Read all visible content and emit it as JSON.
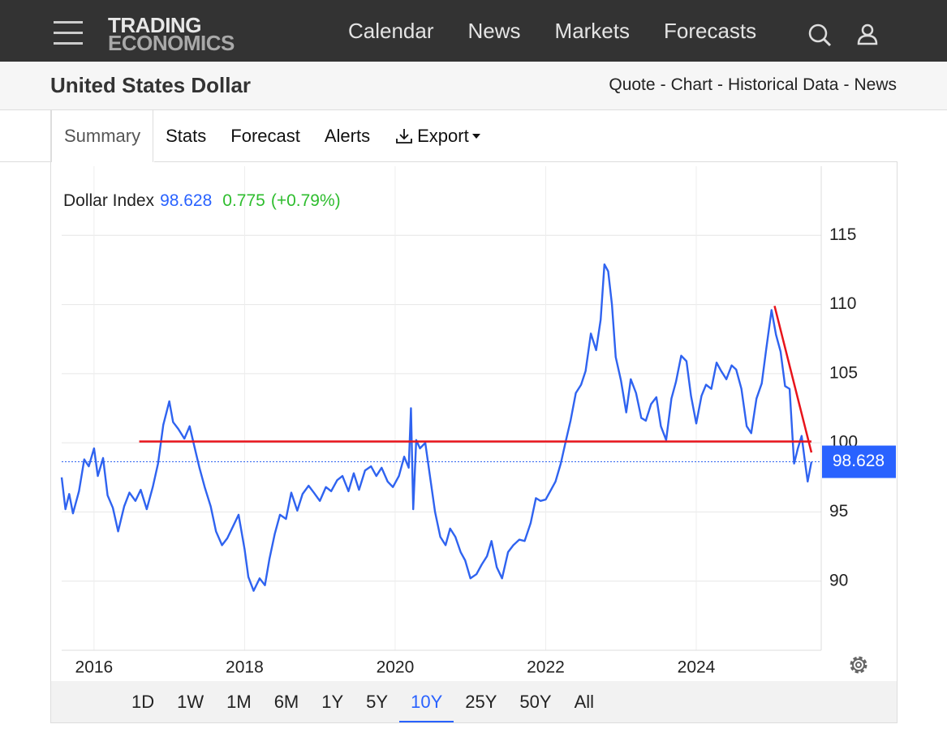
{
  "nav": {
    "logo_top": "TRADING",
    "logo_bottom": "ECONOMICS",
    "links": [
      "Calendar",
      "News",
      "Markets",
      "Forecasts"
    ]
  },
  "header": {
    "title": "United States Dollar",
    "links": [
      "Quote",
      "Chart",
      "Historical Data",
      "News"
    ],
    "separator": "-"
  },
  "tabs": {
    "items": [
      "Summary",
      "Stats",
      "Forecast",
      "Alerts",
      "Export"
    ],
    "active": "Summary"
  },
  "quote": {
    "name": "Dollar Index",
    "change": 0.775,
    "change_percent": "(+0.79%)"
  },
  "chart_data": {
    "type": "line",
    "xlim": [
      2015.57,
      2025.66
    ],
    "xticks": [
      2016,
      2018,
      2020,
      2022,
      2024
    ],
    "ylim": [
      85,
      120
    ],
    "yticks": [
      90,
      95,
      100,
      105,
      110,
      115
    ],
    "grid": true,
    "series": [
      {
        "color": "#2f63f0",
        "x": [
          2015.57,
          2015.62,
          2015.67,
          2015.72,
          2015.8,
          2015.87,
          2015.93,
          2016.0,
          2016.05,
          2016.12,
          2016.18,
          2016.25,
          2016.32,
          2016.4,
          2016.47,
          2016.55,
          2016.62,
          2016.7,
          2016.78,
          2016.85,
          2016.92,
          2017.0,
          2017.05,
          2017.12,
          2017.2,
          2017.27,
          2017.33,
          2017.4,
          2017.47,
          2017.55,
          2017.62,
          2017.7,
          2017.77,
          2017.85,
          2017.92,
          2018.0,
          2018.05,
          2018.12,
          2018.2,
          2018.27,
          2018.33,
          2018.4,
          2018.47,
          2018.55,
          2018.62,
          2018.7,
          2018.77,
          2018.85,
          2018.92,
          2019.0,
          2019.08,
          2019.15,
          2019.23,
          2019.3,
          2019.38,
          2019.45,
          2019.52,
          2019.6,
          2019.68,
          2019.75,
          2019.82,
          2019.9,
          2019.97,
          2020.05,
          2020.12,
          2020.18,
          2020.21,
          2020.24,
          2020.28,
          2020.33,
          2020.4,
          2020.47,
          2020.53,
          2020.6,
          2020.67,
          2020.73,
          2020.8,
          2020.87,
          2020.93,
          2021.0,
          2021.08,
          2021.15,
          2021.22,
          2021.28,
          2021.35,
          2021.42,
          2021.5,
          2021.57,
          2021.65,
          2021.72,
          2021.8,
          2021.87,
          2021.93,
          2022.0,
          2022.07,
          2022.13,
          2022.2,
          2022.27,
          2022.33,
          2022.4,
          2022.47,
          2022.53,
          2022.6,
          2022.67,
          2022.73,
          2022.78,
          2022.83,
          2022.88,
          2022.93,
          2023.0,
          2023.07,
          2023.13,
          2023.2,
          2023.27,
          2023.33,
          2023.4,
          2023.47,
          2023.53,
          2023.6,
          2023.67,
          2023.73,
          2023.8,
          2023.87,
          2023.93,
          2024.0,
          2024.07,
          2024.13,
          2024.2,
          2024.27,
          2024.33,
          2024.4,
          2024.47,
          2024.53,
          2024.6,
          2024.67,
          2024.73,
          2024.8,
          2024.87,
          2024.93,
          2025.0,
          2025.06,
          2025.12,
          2025.18,
          2025.24,
          2025.3,
          2025.35,
          2025.4,
          2025.44,
          2025.48,
          2025.53
        ],
        "values": [
          97.5,
          95.2,
          96.3,
          94.9,
          96.5,
          98.8,
          98.3,
          99.6,
          97.6,
          98.9,
          96.2,
          95.3,
          93.6,
          95.4,
          96.4,
          95.8,
          96.6,
          95.2,
          96.8,
          98.5,
          101.3,
          103.0,
          101.5,
          101.0,
          100.3,
          101.2,
          99.8,
          98.2,
          96.8,
          95.4,
          93.6,
          92.6,
          93.1,
          94.0,
          94.8,
          92.3,
          90.3,
          89.3,
          90.2,
          89.7,
          91.6,
          93.4,
          94.8,
          94.5,
          96.4,
          95.1,
          96.3,
          96.9,
          96.4,
          95.8,
          96.8,
          96.5,
          97.3,
          97.6,
          96.5,
          97.8,
          96.6,
          98.0,
          98.3,
          97.6,
          98.2,
          97.2,
          96.8,
          97.6,
          99.0,
          98.2,
          102.5,
          95.2,
          100.2,
          99.6,
          100.0,
          97.3,
          95.0,
          93.2,
          92.6,
          93.8,
          93.2,
          92.1,
          91.5,
          90.2,
          90.5,
          91.2,
          91.8,
          92.9,
          91.0,
          90.2,
          92.1,
          92.6,
          93.0,
          92.9,
          94.2,
          96.0,
          95.8,
          95.9,
          96.6,
          97.2,
          98.5,
          100.2,
          101.6,
          103.6,
          104.2,
          105.2,
          107.9,
          106.7,
          108.9,
          112.9,
          112.4,
          110.0,
          106.2,
          104.5,
          102.2,
          104.6,
          103.6,
          101.8,
          101.6,
          102.8,
          103.3,
          101.2,
          100.2,
          103.2,
          104.4,
          106.3,
          105.9,
          103.4,
          101.4,
          103.4,
          104.2,
          103.9,
          105.8,
          105.2,
          104.6,
          105.6,
          105.3,
          103.9,
          101.2,
          100.7,
          103.2,
          104.3,
          106.8,
          109.6,
          107.8,
          106.6,
          104.1,
          103.9,
          98.5,
          99.6,
          100.5,
          98.8,
          97.2,
          98.628
        ]
      }
    ],
    "trend_lines": [
      {
        "color": "#e8141b",
        "x": [
          2016.6,
          2025.53
        ],
        "values": [
          100.1,
          100.1
        ]
      },
      {
        "color": "#e8141b",
        "x": [
          2025.04,
          2025.53
        ],
        "values": [
          109.9,
          99.3
        ]
      }
    ],
    "price_tag_color": "#2962ff"
  },
  "ranges": {
    "items": [
      "1D",
      "1W",
      "1M",
      "6M",
      "1Y",
      "5Y",
      "10Y",
      "25Y",
      "50Y",
      "All"
    ],
    "active": "10Y"
  }
}
